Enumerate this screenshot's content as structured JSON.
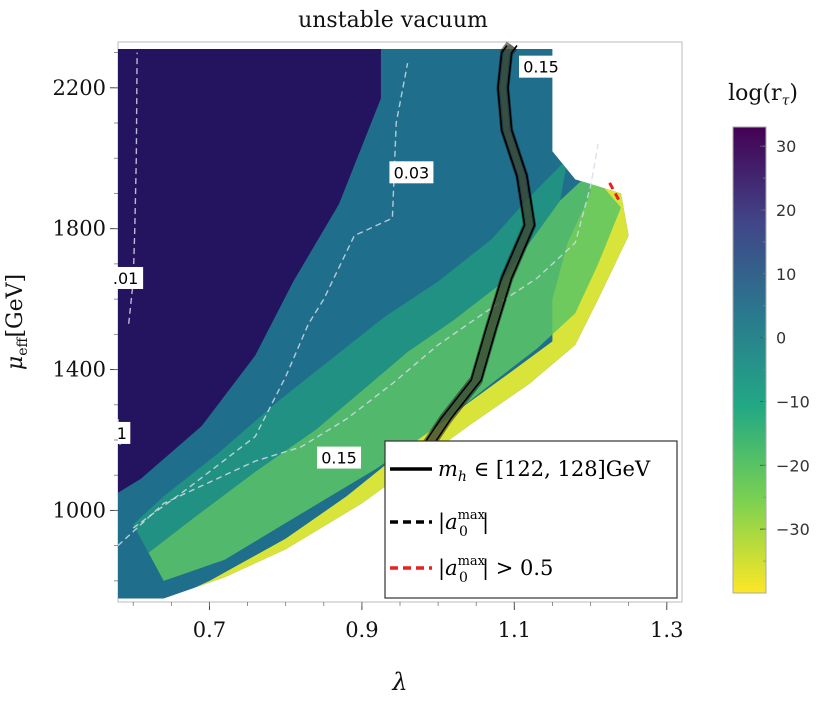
{
  "chart_data": {
    "type": "heatmap",
    "title": "unstable vacuum",
    "xlabel": "λ",
    "ylabel_main": "μ",
    "ylabel_sub": "eff",
    "ylabel_unit": "[GeV]",
    "xlim": [
      0.58,
      1.32
    ],
    "ylim": [
      740,
      2330
    ],
    "x_ticks": [
      0.7,
      0.9,
      1.1,
      1.3
    ],
    "x_tick_labels": [
      "0.7",
      "0.9",
      "1.1",
      "1.3"
    ],
    "y_ticks": [
      1000,
      1400,
      1800,
      2200
    ],
    "y_tick_labels": [
      "1000",
      "1400",
      "1800",
      "2200"
    ],
    "colorbar": {
      "label": "log(r",
      "label_sub": "τ",
      "label_close": ")",
      "min": -40,
      "max": 33,
      "ticks": [
        30,
        20,
        10,
        0,
        -10,
        -20,
        -30
      ],
      "tick_labels": [
        "30",
        "20",
        "10",
        "0",
        "−10",
        "−20",
        "−30"
      ],
      "colors": [
        "#440154",
        "#414487",
        "#2a788e",
        "#22a884",
        "#7ad151",
        "#fde725"
      ]
    },
    "regions": {
      "saturated": {
        "color": "#24135f",
        "boundary": [
          [
            0.58,
            2310
          ],
          [
            0.925,
            2310
          ],
          [
            0.925,
            2170
          ],
          [
            0.87,
            1870
          ],
          [
            0.81,
            1650
          ],
          [
            0.76,
            1440
          ],
          [
            0.69,
            1240
          ],
          [
            0.61,
            1090
          ],
          [
            0.58,
            1050
          ]
        ]
      },
      "valid": {
        "boundary": [
          [
            0.58,
            2310
          ],
          [
            1.15,
            2310
          ],
          [
            1.15,
            2020
          ],
          [
            1.18,
            1940
          ],
          [
            1.24,
            1900
          ],
          [
            1.25,
            1780
          ],
          [
            1.21,
            1600
          ],
          [
            1.18,
            1470
          ],
          [
            1.12,
            1360
          ],
          [
            1.04,
            1240
          ],
          [
            0.97,
            1130
          ],
          [
            0.9,
            1020
          ],
          [
            0.8,
            890
          ],
          [
            0.72,
            810
          ],
          [
            0.64,
            750
          ],
          [
            0.58,
            750
          ]
        ]
      }
    },
    "dashed_contours": [
      {
        "label": ".01",
        "label_at": [
          0.59,
          1660
        ],
        "points": [
          [
            0.594,
            1530
          ],
          [
            0.6,
            1650
          ],
          [
            0.602,
            1800
          ],
          [
            0.604,
            2000
          ],
          [
            0.605,
            2300
          ]
        ]
      },
      {
        "label": "1",
        "label_at": [
          0.585,
          1220
        ],
        "points": [
          [
            0.58,
            1260
          ],
          [
            0.583,
            1180
          ]
        ]
      },
      {
        "label": "0.03",
        "label_at": [
          0.965,
          1960
        ],
        "points": [
          [
            0.6,
            950
          ],
          [
            0.67,
            1060
          ],
          [
            0.76,
            1210
          ],
          [
            0.8,
            1380
          ],
          [
            0.83,
            1530
          ],
          [
            0.85,
            1600
          ],
          [
            0.89,
            1780
          ],
          [
            0.94,
            1830
          ],
          [
            0.945,
            2100
          ],
          [
            0.96,
            2270
          ]
        ]
      },
      {
        "label": "0.15",
        "label_at": [
          0.87,
          1150
        ],
        "points": [
          [
            0.58,
            900
          ],
          [
            0.64,
            1020
          ],
          [
            0.71,
            1090
          ],
          [
            0.76,
            1140
          ],
          [
            0.82,
            1180
          ],
          [
            0.88,
            1260
          ],
          [
            0.94,
            1360
          ],
          [
            1.0,
            1470
          ],
          [
            1.06,
            1560
          ],
          [
            1.13,
            1660
          ],
          [
            1.18,
            1760
          ],
          [
            1.2,
            1920
          ],
          [
            1.21,
            2040
          ]
        ]
      }
    ],
    "colored_contour_label": {
      "label": "0.15",
      "label_at": [
        1.135,
        2260
      ]
    },
    "mh_band": {
      "name": "m_h ∈ [122, 128]GeV",
      "points": [
        [
          0.97,
          1130
        ],
        [
          1.01,
          1260
        ],
        [
          1.05,
          1370
        ],
        [
          1.07,
          1520
        ],
        [
          1.09,
          1660
        ],
        [
          1.12,
          1810
        ],
        [
          1.11,
          1950
        ],
        [
          1.09,
          2080
        ],
        [
          1.085,
          2200
        ],
        [
          1.09,
          2300
        ],
        [
          1.097,
          2320
        ]
      ]
    },
    "legend": {
      "placement": "bottom-right",
      "entries": [
        {
          "prefix": "m",
          "sub": "h",
          "suffix": " ∈ [122, 128]GeV",
          "style": "solid",
          "color": "#000000"
        },
        {
          "prefix": "|a",
          "sub": "0",
          "sup": "max",
          "suffix": "|",
          "style": "dashed",
          "color": "#000000"
        },
        {
          "prefix": "|a",
          "sub": "0",
          "sup": "max",
          "suffix": "| > 0.5",
          "style": "dashed",
          "color": "#e8201f"
        }
      ]
    },
    "red_dashed_segment": {
      "points": [
        [
          1.225,
          1930
        ],
        [
          1.24,
          1870
        ]
      ],
      "color": "#e8201f"
    }
  }
}
